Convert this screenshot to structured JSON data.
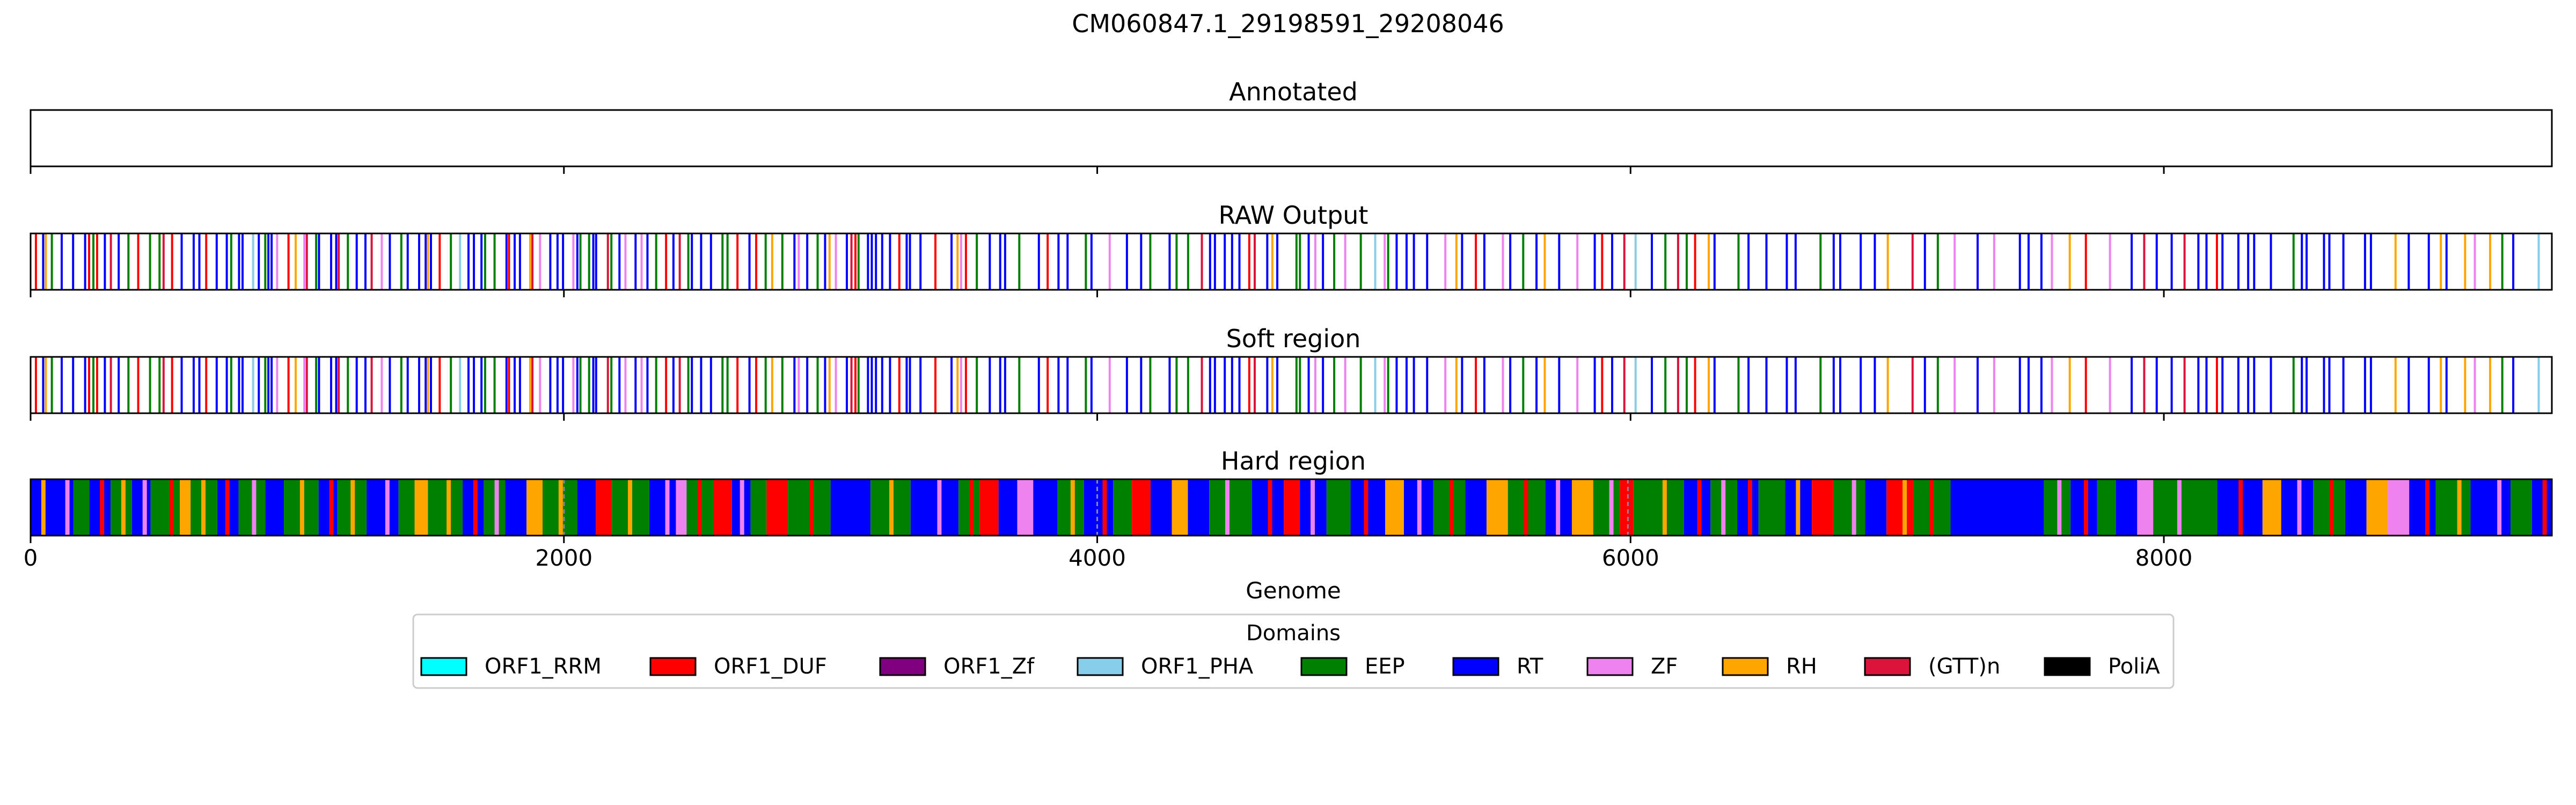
{
  "chart_data": {
    "type": "track",
    "title": "CM060847.1_29198591_29208046",
    "xlabel": "Genome",
    "xlim": [
      0,
      9455
    ],
    "xticks": [
      0,
      2000,
      4000,
      6000,
      8000
    ],
    "xtick_labels": [
      "0",
      "2000",
      "4000",
      "6000",
      "8000"
    ],
    "panels": [
      {
        "key": "annotated",
        "title": "Annotated"
      },
      {
        "key": "raw",
        "title": "RAW Output"
      },
      {
        "key": "soft",
        "title": "Soft region"
      },
      {
        "key": "hard",
        "title": "Hard region"
      }
    ],
    "legend": {
      "title": "Domains",
      "placement": "bottom-center",
      "entries": [
        {
          "label": "ORF1_RRM",
          "color": "#00ffff"
        },
        {
          "label": "ORF1_DUF",
          "color": "#ff0000"
        },
        {
          "label": "ORF1_Zf",
          "color": "#800080"
        },
        {
          "label": "ORF1_PHA",
          "color": "#87ceeb"
        },
        {
          "label": "EEP",
          "color": "#008000"
        },
        {
          "label": "RT",
          "color": "#0000ff"
        },
        {
          "label": "ZF",
          "color": "#ee82ee"
        },
        {
          "label": "RH",
          "color": "#ffa500"
        },
        {
          "label": "(GTT)n",
          "color": "#dc143c"
        },
        {
          "label": "PoliA",
          "color": "#000000"
        }
      ]
    },
    "hard_segments": [
      [
        0,
        160,
        "RT"
      ],
      [
        160,
        220,
        "EEP"
      ],
      [
        220,
        300,
        "RT"
      ],
      [
        300,
        380,
        "EEP"
      ],
      [
        380,
        450,
        "RT"
      ],
      [
        450,
        560,
        "EEP"
      ],
      [
        560,
        600,
        "RH"
      ],
      [
        600,
        700,
        "EEP"
      ],
      [
        700,
        780,
        "RT"
      ],
      [
        780,
        880,
        "EEP"
      ],
      [
        880,
        950,
        "RT"
      ],
      [
        950,
        1080,
        "EEP"
      ],
      [
        1080,
        1150,
        "RT"
      ],
      [
        1150,
        1260,
        "EEP"
      ],
      [
        1260,
        1380,
        "RT"
      ],
      [
        1380,
        1440,
        "EEP"
      ],
      [
        1440,
        1490,
        "RH"
      ],
      [
        1490,
        1620,
        "EEP"
      ],
      [
        1620,
        1700,
        "RT"
      ],
      [
        1700,
        1780,
        "EEP"
      ],
      [
        1780,
        1860,
        "RT"
      ],
      [
        1860,
        1920,
        "RH"
      ],
      [
        1920,
        2050,
        "EEP"
      ],
      [
        2050,
        2120,
        "RT"
      ],
      [
        2120,
        2180,
        "ORF1_DUF"
      ],
      [
        2180,
        2320,
        "EEP"
      ],
      [
        2320,
        2420,
        "RT"
      ],
      [
        2420,
        2460,
        "ZF"
      ],
      [
        2460,
        2560,
        "EEP"
      ],
      [
        2560,
        2630,
        "ORF1_DUF"
      ],
      [
        2630,
        2700,
        "RT"
      ],
      [
        2700,
        2760,
        "EEP"
      ],
      [
        2760,
        2840,
        "ORF1_DUF"
      ],
      [
        2840,
        3000,
        "EEP"
      ],
      [
        3000,
        3150,
        "RT"
      ],
      [
        3150,
        3300,
        "EEP"
      ],
      [
        3300,
        3480,
        "RT"
      ],
      [
        3480,
        3560,
        "EEP"
      ],
      [
        3560,
        3630,
        "ORF1_DUF"
      ],
      [
        3630,
        3700,
        "RT"
      ],
      [
        3700,
        3760,
        "ZF"
      ],
      [
        3760,
        3850,
        "RT"
      ],
      [
        3850,
        3950,
        "EEP"
      ],
      [
        3950,
        4060,
        "RT"
      ],
      [
        4060,
        4130,
        "EEP"
      ],
      [
        4130,
        4200,
        "ORF1_DUF"
      ],
      [
        4200,
        4280,
        "RT"
      ],
      [
        4280,
        4340,
        "RH"
      ],
      [
        4340,
        4420,
        "RT"
      ],
      [
        4420,
        4580,
        "EEP"
      ],
      [
        4580,
        4700,
        "RT"
      ],
      [
        4700,
        4760,
        "ORF1_DUF"
      ],
      [
        4760,
        4860,
        "RT"
      ],
      [
        4860,
        4950,
        "EEP"
      ],
      [
        4950,
        5080,
        "RT"
      ],
      [
        5080,
        5150,
        "RH"
      ],
      [
        5150,
        5260,
        "RT"
      ],
      [
        5260,
        5380,
        "EEP"
      ],
      [
        5380,
        5460,
        "RT"
      ],
      [
        5460,
        5540,
        "RH"
      ],
      [
        5540,
        5680,
        "EEP"
      ],
      [
        5680,
        5780,
        "RT"
      ],
      [
        5780,
        5860,
        "RH"
      ],
      [
        5860,
        5960,
        "EEP"
      ],
      [
        5960,
        6010,
        "ORF1_DUF"
      ],
      [
        6010,
        6200,
        "EEP"
      ],
      [
        6200,
        6300,
        "RT"
      ],
      [
        6300,
        6400,
        "EEP"
      ],
      [
        6400,
        6480,
        "RT"
      ],
      [
        6480,
        6580,
        "EEP"
      ],
      [
        6580,
        6680,
        "RT"
      ],
      [
        6680,
        6760,
        "ORF1_DUF"
      ],
      [
        6760,
        6880,
        "EEP"
      ],
      [
        6880,
        6960,
        "RT"
      ],
      [
        6960,
        7060,
        "ORF1_DUF"
      ],
      [
        7060,
        7200,
        "EEP"
      ],
      [
        7200,
        7550,
        "RT"
      ],
      [
        7550,
        7650,
        "EEP"
      ],
      [
        7650,
        7750,
        "RT"
      ],
      [
        7750,
        7820,
        "EEP"
      ],
      [
        7820,
        7900,
        "RT"
      ],
      [
        7900,
        7960,
        "ZF"
      ],
      [
        7960,
        8200,
        "EEP"
      ],
      [
        8200,
        8370,
        "RT"
      ],
      [
        8370,
        8440,
        "RH"
      ],
      [
        8440,
        8560,
        "RT"
      ],
      [
        8560,
        8680,
        "EEP"
      ],
      [
        8680,
        8760,
        "RT"
      ],
      [
        8760,
        8840,
        "RH"
      ],
      [
        8840,
        8920,
        "ZF"
      ],
      [
        8920,
        9020,
        "RT"
      ],
      [
        9020,
        9150,
        "EEP"
      ],
      [
        9150,
        9300,
        "RT"
      ],
      [
        9300,
        9380,
        "EEP"
      ],
      [
        9380,
        9455,
        "RT"
      ]
    ],
    "hard_thin": [
      [
        40,
        "RH"
      ],
      [
        130,
        "ZF"
      ],
      [
        260,
        "ORF1_DUF"
      ],
      [
        340,
        "RH"
      ],
      [
        420,
        "ZF"
      ],
      [
        520,
        "ORF1_DUF"
      ],
      [
        640,
        "RH"
      ],
      [
        730,
        "ORF1_DUF"
      ],
      [
        830,
        "ZF"
      ],
      [
        1010,
        "RH"
      ],
      [
        1120,
        "ORF1_DUF"
      ],
      [
        1200,
        "RH"
      ],
      [
        1330,
        "ZF"
      ],
      [
        1560,
        "RH"
      ],
      [
        1660,
        "ORF1_DUF"
      ],
      [
        1740,
        "ZF"
      ],
      [
        1980,
        "RH"
      ],
      [
        2240,
        "RH"
      ],
      [
        2380,
        "ZF"
      ],
      [
        2500,
        "ORF1_DUF"
      ],
      [
        2660,
        "ZF"
      ],
      [
        2920,
        "ORF1_DUF"
      ],
      [
        3220,
        "RH"
      ],
      [
        3400,
        "ZF"
      ],
      [
        3520,
        "ORF1_DUF"
      ],
      [
        3900,
        "RH"
      ],
      [
        4020,
        "ORF1_DUF"
      ],
      [
        4480,
        "ZF"
      ],
      [
        4640,
        "ORF1_DUF"
      ],
      [
        4800,
        "ZF"
      ],
      [
        5000,
        "ORF1_DUF"
      ],
      [
        5200,
        "ZF"
      ],
      [
        5320,
        "ORF1_DUF"
      ],
      [
        5600,
        "ORF1_DUF"
      ],
      [
        5720,
        "ZF"
      ],
      [
        5920,
        "ZF"
      ],
      [
        6120,
        "RH"
      ],
      [
        6250,
        "ORF1_DUF"
      ],
      [
        6340,
        "ZF"
      ],
      [
        6440,
        "ORF1_DUF"
      ],
      [
        6620,
        "RH"
      ],
      [
        6830,
        "ZF"
      ],
      [
        7020,
        "RH"
      ],
      [
        7120,
        "ORF1_DUF"
      ],
      [
        7600,
        "ZF"
      ],
      [
        7700,
        "ORF1_DUF"
      ],
      [
        8050,
        "ZF"
      ],
      [
        8280,
        "ORF1_DUF"
      ],
      [
        8500,
        "ZF"
      ],
      [
        8620,
        "ORF1_DUF"
      ],
      [
        8980,
        "ORF1_DUF"
      ],
      [
        9100,
        "RH"
      ],
      [
        9250,
        "ZF"
      ],
      [
        9420,
        "ORF1_DUF"
      ]
    ],
    "hard_dashed": [
      2000,
      4000,
      5990
    ],
    "raw_line_seed": 17,
    "raw_line_weights": {
      "RT": 48,
      "EEP": 22,
      "ORF1_DUF": 10,
      "ZF": 6,
      "RH": 6,
      "ORF1_PHA": 3,
      "(GTT)n": 5
    }
  }
}
